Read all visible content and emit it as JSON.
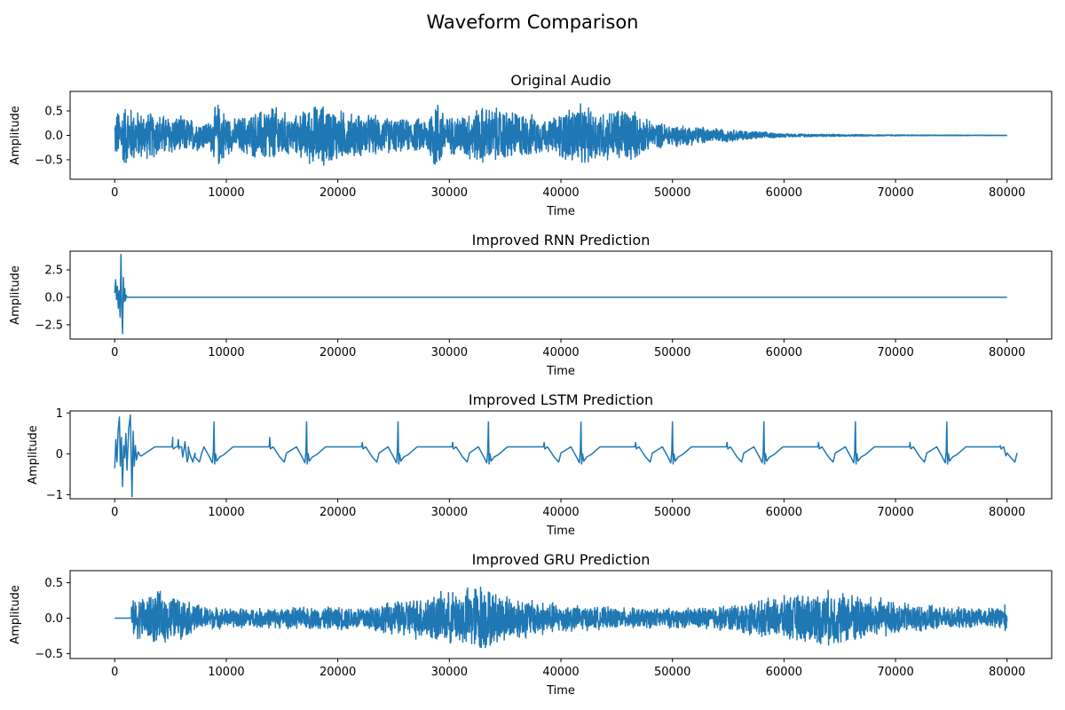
{
  "figure": {
    "suptitle": "Waveform Comparison"
  },
  "chart_data": [
    {
      "type": "line",
      "title": "Original Audio",
      "xlabel": "Time",
      "ylabel": "Amplitude",
      "xlim": [
        -4000,
        84000
      ],
      "ylim": [
        -0.9,
        0.9
      ],
      "xticks": [
        0,
        10000,
        20000,
        30000,
        40000,
        50000,
        60000,
        70000,
        80000
      ],
      "yticks": [
        -0.5,
        0.0,
        0.5
      ],
      "ytick_labels": [
        "−0.5",
        "0.0",
        "0.5"
      ],
      "color": "#1f77b4",
      "envelope": [
        [
          0,
          0.5
        ],
        [
          1000,
          0.7
        ],
        [
          2000,
          0.55
        ],
        [
          5000,
          0.45
        ],
        [
          8500,
          0.3
        ],
        [
          9200,
          0.75
        ],
        [
          10500,
          0.35
        ],
        [
          13000,
          0.55
        ],
        [
          14000,
          0.7
        ],
        [
          16000,
          0.4
        ],
        [
          17500,
          0.65
        ],
        [
          18500,
          0.7
        ],
        [
          21000,
          0.5
        ],
        [
          23000,
          0.45
        ],
        [
          26000,
          0.35
        ],
        [
          28000,
          0.4
        ],
        [
          28800,
          0.85
        ],
        [
          30000,
          0.4
        ],
        [
          33000,
          0.65
        ],
        [
          36000,
          0.55
        ],
        [
          39000,
          0.35
        ],
        [
          40500,
          0.6
        ],
        [
          41000,
          0.7
        ],
        [
          44000,
          0.55
        ],
        [
          46000,
          0.65
        ],
        [
          48000,
          0.3
        ],
        [
          50000,
          0.25
        ],
        [
          53000,
          0.18
        ],
        [
          57000,
          0.1
        ],
        [
          60000,
          0.04
        ],
        [
          65000,
          0.025
        ],
        [
          70000,
          0.012
        ],
        [
          75000,
          0.008
        ],
        [
          80000,
          0.005
        ]
      ],
      "n_points": 80000
    },
    {
      "type": "line",
      "title": "Improved RNN Prediction",
      "xlabel": "Time",
      "ylabel": "Amplitude",
      "xlim": [
        -4000,
        84000
      ],
      "ylim": [
        -3.8,
        4.2
      ],
      "xticks": [
        0,
        10000,
        20000,
        30000,
        40000,
        50000,
        60000,
        70000,
        80000
      ],
      "yticks": [
        -2.5,
        0.0,
        2.5
      ],
      "ytick_labels": [
        "−2.5",
        "0.0",
        "2.5"
      ],
      "color": "#1f77b4",
      "points": [
        [
          0,
          0.4
        ],
        [
          80,
          1.6
        ],
        [
          160,
          -0.2
        ],
        [
          240,
          1.0
        ],
        [
          320,
          -1.0
        ],
        [
          400,
          0.6
        ],
        [
          480,
          -1.8
        ],
        [
          560,
          3.9
        ],
        [
          620,
          -0.5
        ],
        [
          700,
          -3.3
        ],
        [
          780,
          1.8
        ],
        [
          840,
          -0.4
        ],
        [
          900,
          0.8
        ],
        [
          960,
          -0.3
        ],
        [
          1020,
          0.2
        ],
        [
          1100,
          0.0
        ],
        [
          80000,
          0.0
        ]
      ]
    },
    {
      "type": "line",
      "title": "Improved LSTM Prediction",
      "xlabel": "Time",
      "ylabel": "Amplitude",
      "xlim": [
        -4000,
        84000
      ],
      "ylim": [
        -1.1,
        1.05
      ],
      "xticks": [
        0,
        10000,
        20000,
        30000,
        40000,
        50000,
        60000,
        70000,
        80000
      ],
      "yticks": [
        -1,
        0,
        1
      ],
      "ytick_labels": [
        "−1",
        "0",
        "1"
      ],
      "color": "#1f77b4",
      "initial_burst": [
        [
          0,
          -0.35
        ],
        [
          100,
          0.35
        ],
        [
          200,
          -0.2
        ],
        [
          300,
          0.55
        ],
        [
          420,
          0.9
        ],
        [
          500,
          -0.3
        ],
        [
          600,
          0.4
        ],
        [
          700,
          -0.8
        ],
        [
          800,
          0.2
        ],
        [
          900,
          -0.1
        ],
        [
          1000,
          0.5
        ],
        [
          1100,
          -0.4
        ],
        [
          1250,
          0.6
        ],
        [
          1400,
          0.95
        ],
        [
          1550,
          -1.05
        ],
        [
          1650,
          0.55
        ],
        [
          1750,
          -0.3
        ],
        [
          1850,
          0.2
        ],
        [
          1950,
          -0.15
        ],
        [
          2100,
          0.05
        ],
        [
          2300,
          -0.05
        ]
      ],
      "baseline_high": 0.17,
      "baseline_low": -0.08,
      "spikes": [
        [
          8900,
          0.78
        ],
        [
          17200,
          0.78
        ],
        [
          25400,
          0.78
        ],
        [
          33500,
          0.78
        ],
        [
          41800,
          0.78
        ],
        [
          50000,
          0.78
        ],
        [
          58200,
          0.78
        ],
        [
          66400,
          0.78
        ],
        [
          74600,
          0.78
        ]
      ],
      "small_spikes": [
        [
          5200,
          0.4
        ],
        [
          5700,
          0.35
        ],
        [
          6300,
          0.3
        ],
        [
          13900,
          0.4
        ],
        [
          22200,
          0.28
        ],
        [
          30300,
          0.28
        ],
        [
          38500,
          0.28
        ],
        [
          46700,
          0.28
        ],
        [
          54900,
          0.28
        ],
        [
          63100,
          0.28
        ],
        [
          71300,
          0.28
        ],
        [
          79400,
          0.2
        ]
      ]
    },
    {
      "type": "line",
      "title": "Improved GRU Prediction",
      "xlabel": "Time",
      "ylabel": "Amplitude",
      "xlim": [
        -4000,
        84000
      ],
      "ylim": [
        -0.57,
        0.67
      ],
      "xticks": [
        0,
        10000,
        20000,
        30000,
        40000,
        50000,
        60000,
        70000,
        80000
      ],
      "yticks": [
        -0.5,
        0.0,
        0.5
      ],
      "ytick_labels": [
        "−0.5",
        "0.0",
        "0.5"
      ],
      "color": "#1f77b4",
      "flat_until": 1500,
      "envelope": [
        [
          1500,
          0.25
        ],
        [
          2500,
          0.35
        ],
        [
          4000,
          0.4
        ],
        [
          6000,
          0.3
        ],
        [
          8000,
          0.18
        ],
        [
          10000,
          0.15
        ],
        [
          14000,
          0.15
        ],
        [
          18000,
          0.17
        ],
        [
          22000,
          0.18
        ],
        [
          25000,
          0.25
        ],
        [
          28000,
          0.35
        ],
        [
          31000,
          0.42
        ],
        [
          32800,
          0.55
        ],
        [
          34000,
          0.4
        ],
        [
          37000,
          0.3
        ],
        [
          40000,
          0.22
        ],
        [
          43000,
          0.17
        ],
        [
          47000,
          0.15
        ],
        [
          51000,
          0.15
        ],
        [
          55000,
          0.2
        ],
        [
          59000,
          0.3
        ],
        [
          62000,
          0.38
        ],
        [
          64500,
          0.42
        ],
        [
          67000,
          0.36
        ],
        [
          70000,
          0.25
        ],
        [
          74000,
          0.17
        ],
        [
          78000,
          0.14
        ],
        [
          80000,
          0.22
        ]
      ],
      "n_points": 80000
    }
  ]
}
